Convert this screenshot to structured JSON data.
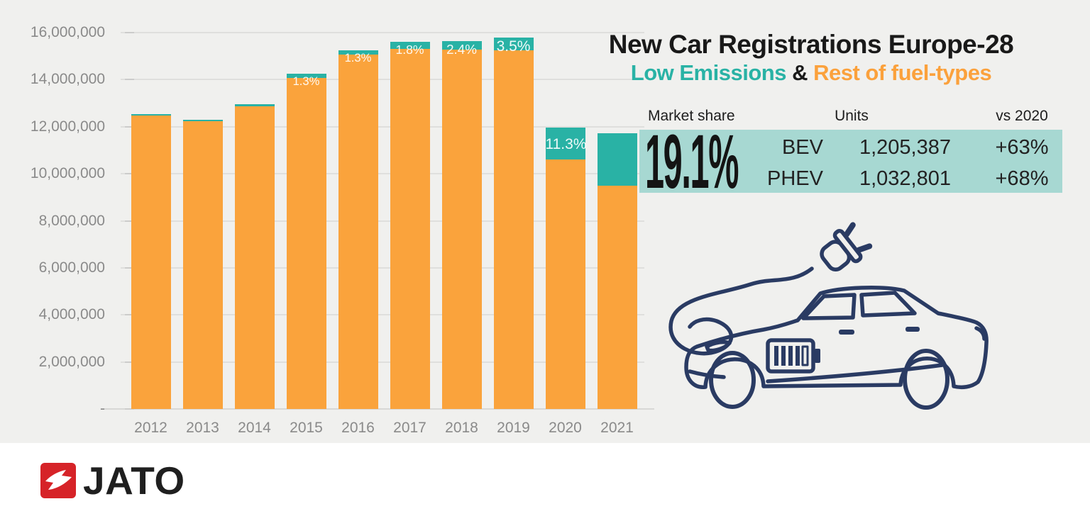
{
  "title": {
    "main": "New Car Registrations Europe-28",
    "sub_low": "Low Emissions",
    "sub_amp": "&",
    "sub_rest": "Rest of fuel-types"
  },
  "colors": {
    "low_emissions": "#29b2a5",
    "rest_fuel": "#faa33c",
    "panel": "#a7d8d2",
    "background": "#f0f0ee",
    "axis_text": "#8a8a8a",
    "navy_illustration": "#2a3b63",
    "logo_red": "#d62328"
  },
  "chart_data": {
    "type": "bar",
    "stacked": true,
    "title": "New Car Registrations Europe-28",
    "subtitle": "Low Emissions & Rest of fuel-types",
    "categories": [
      "2012",
      "2013",
      "2014",
      "2015",
      "2016",
      "2017",
      "2018",
      "2019",
      "2020",
      "2021"
    ],
    "totals_millions": [
      12.55,
      12.3,
      12.95,
      14.25,
      15.25,
      15.6,
      15.65,
      15.8,
      11.95,
      11.72
    ],
    "series": [
      {
        "name": "Low Emissions",
        "color": "#29b2a5",
        "share_pct": [
          0.3,
          0.3,
          0.6,
          1.3,
          1.3,
          1.8,
          2.4,
          3.5,
          11.3,
          19.1
        ]
      },
      {
        "name": "Rest of fuel-types",
        "color": "#faa33c"
      }
    ],
    "bar_labels": [
      "",
      "",
      "",
      "1.3%",
      "1.3%",
      "1.8%",
      "2.4%",
      "3.5%",
      "11.3%",
      ""
    ],
    "ylim": [
      0,
      16000000
    ],
    "grid": true,
    "y_ticks": {
      "values_millions": [
        0,
        2,
        4,
        6,
        8,
        10,
        12,
        14,
        16
      ],
      "labels": [
        "-",
        "2,000,000",
        "4,000,000",
        "6,000,000",
        "8,000,000",
        "10,000,000",
        "12,000,000",
        "14,000,000",
        "16,000,000"
      ]
    },
    "legend_position": "in-subtitle"
  },
  "market_share": {
    "header": "Market share",
    "units_header": "Units",
    "vs_header": "vs 2020",
    "value": "19.1%",
    "rows": [
      {
        "label": "BEV",
        "units": "1,205,387",
        "change": "+63%"
      },
      {
        "label": "PHEV",
        "units": "1,032,801",
        "change": "+68%"
      }
    ]
  },
  "logo": {
    "text": "JATO"
  }
}
